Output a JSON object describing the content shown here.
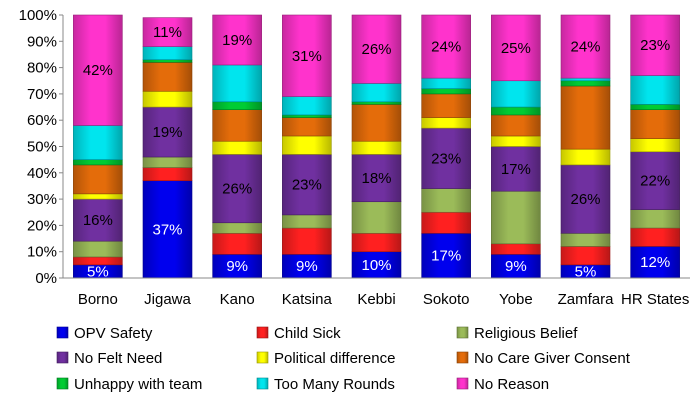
{
  "chart_data": {
    "type": "bar",
    "stacked": true,
    "percent_stacked": true,
    "categories": [
      "Borno",
      "Jigawa",
      "Kano",
      "Katsina",
      "Kebbi",
      "Sokoto",
      "Yobe",
      "Zamfara",
      "HR States"
    ],
    "ylim": [
      0,
      100
    ],
    "yticks": [
      "0%",
      "10%",
      "20%",
      "30%",
      "40%",
      "50%",
      "60%",
      "70%",
      "80%",
      "90%",
      "100%"
    ],
    "grid": false,
    "legend_position": "bottom",
    "series": [
      {
        "name": "OPV Safety",
        "color": "#0000ee",
        "values": [
          5,
          37,
          9,
          9,
          10,
          17,
          9,
          5,
          12
        ]
      },
      {
        "name": "Child Sick",
        "color": "#ff2020",
        "values": [
          3,
          5,
          8,
          10,
          7,
          8,
          4,
          7,
          7
        ]
      },
      {
        "name": "Religious Belief",
        "color": "#9bbb59",
        "values": [
          6,
          4,
          4,
          5,
          12,
          9,
          20,
          5,
          7
        ]
      },
      {
        "name": "No Felt Need",
        "color": "#7030a0",
        "values": [
          16,
          19,
          26,
          23,
          18,
          23,
          17,
          26,
          22
        ]
      },
      {
        "name": "Political difference",
        "color": "#ffff00",
        "values": [
          2,
          6,
          5,
          7,
          5,
          4,
          4,
          6,
          5
        ]
      },
      {
        "name": "No Care Giver Consent",
        "color": "#e46c0a",
        "values": [
          11,
          11,
          12,
          7,
          14,
          9,
          8,
          24,
          11
        ]
      },
      {
        "name": "Unhappy with team",
        "color": "#00cc33",
        "values": [
          2,
          1,
          3,
          1,
          1,
          2,
          3,
          2,
          2
        ]
      },
      {
        "name": "Too Many Rounds",
        "color": "#00e5ee",
        "values": [
          13,
          5,
          14,
          7,
          7,
          4,
          10,
          1,
          11
        ]
      },
      {
        "name": "No Reason",
        "color": "#ff33cc",
        "values": [
          42,
          11,
          19,
          31,
          26,
          24,
          25,
          24,
          23
        ]
      }
    ],
    "data_labels": [
      {
        "series": "OPV Safety",
        "labels": [
          "5%",
          "37%",
          "9%",
          "9%",
          "10%",
          "17%",
          "9%",
          "5%",
          "12%"
        ]
      },
      {
        "series": "No Felt Need",
        "labels": [
          "16%",
          "19%",
          "26%",
          "23%",
          "18%",
          "23%",
          "17%",
          "26%",
          "22%"
        ]
      },
      {
        "series": "No Reason",
        "labels": [
          "42%",
          "11%",
          "19%",
          "31%",
          "26%",
          "24%",
          "25%",
          "24%",
          "23%"
        ]
      }
    ]
  }
}
